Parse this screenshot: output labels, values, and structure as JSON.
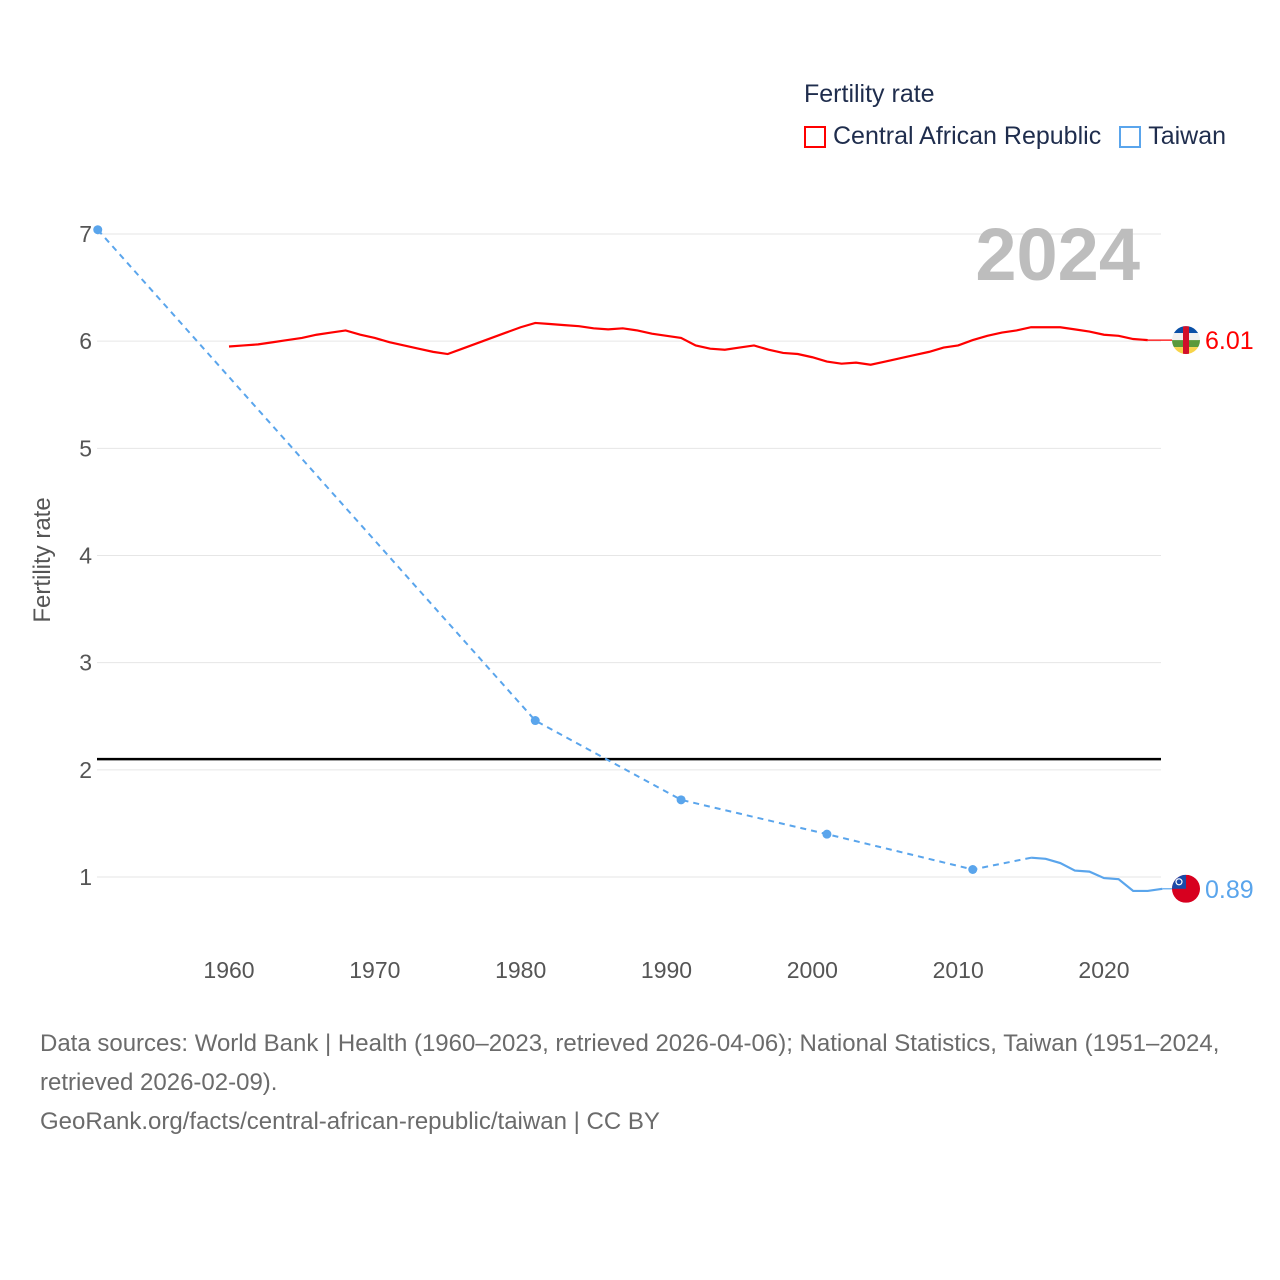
{
  "chart_data": {
    "type": "line",
    "title": "Fertility rate",
    "ylabel": "Fertility rate",
    "xlabel": "",
    "year_display": "2024",
    "xlim": [
      1951,
      2024
    ],
    "ylim": [
      0.4,
      7.1
    ],
    "x_ticks": [
      1960,
      1970,
      1980,
      1990,
      2000,
      2010,
      2020
    ],
    "y_ticks": [
      1,
      2,
      3,
      4,
      5,
      6,
      7
    ],
    "grid": true,
    "legend_position": "top-right",
    "reference_line": {
      "value": 2.1,
      "color": "#000000"
    },
    "series": [
      {
        "name": "Central African Republic",
        "color": "#ff0000",
        "end_label": "6.01",
        "flag": "central-african-republic-flag",
        "x": [
          1960,
          1961,
          1962,
          1963,
          1964,
          1965,
          1966,
          1967,
          1968,
          1969,
          1970,
          1971,
          1972,
          1973,
          1974,
          1975,
          1976,
          1977,
          1978,
          1979,
          1980,
          1981,
          1982,
          1983,
          1984,
          1985,
          1986,
          1987,
          1988,
          1989,
          1990,
          1991,
          1992,
          1993,
          1994,
          1995,
          1996,
          1997,
          1998,
          1999,
          2000,
          2001,
          2002,
          2003,
          2004,
          2005,
          2006,
          2007,
          2008,
          2009,
          2010,
          2011,
          2012,
          2013,
          2014,
          2015,
          2016,
          2017,
          2018,
          2019,
          2020,
          2021,
          2022,
          2023
        ],
        "y": [
          5.95,
          5.96,
          5.97,
          5.99,
          6.01,
          6.03,
          6.06,
          6.08,
          6.1,
          6.06,
          6.03,
          5.99,
          5.96,
          5.93,
          5.9,
          5.88,
          5.93,
          5.98,
          6.03,
          6.08,
          6.13,
          6.17,
          6.16,
          6.15,
          6.14,
          6.12,
          6.11,
          6.12,
          6.1,
          6.07,
          6.05,
          6.03,
          5.96,
          5.93,
          5.92,
          5.94,
          5.96,
          5.92,
          5.89,
          5.88,
          5.85,
          5.81,
          5.79,
          5.8,
          5.78,
          5.81,
          5.84,
          5.87,
          5.9,
          5.94,
          5.96,
          6.01,
          6.05,
          6.08,
          6.1,
          6.13,
          6.13,
          6.13,
          6.11,
          6.09,
          6.06,
          6.05,
          6.02,
          6.01
        ]
      },
      {
        "name": "Taiwan",
        "color": "#5aa5ec",
        "end_label": "0.89",
        "flag": "taiwan-flag",
        "x": [
          1951,
          1981,
          1991,
          2001,
          2011,
          2015,
          2016,
          2017,
          2018,
          2019,
          2020,
          2021,
          2022,
          2023,
          2024
        ],
        "y": [
          7.04,
          2.46,
          1.72,
          1.4,
          1.07,
          1.18,
          1.17,
          1.13,
          1.06,
          1.05,
          0.99,
          0.98,
          0.87,
          0.87,
          0.89
        ],
        "dashed_until": 2015
      }
    ]
  },
  "footer": {
    "sources": "Data sources: World Bank | Health (1960–2023, retrieved 2026-04-06); National Statistics, Taiwan (1951–2024, retrieved 2026-02-09).",
    "link": "GeoRank.org/facts/central-african-republic/taiwan | CC BY"
  }
}
